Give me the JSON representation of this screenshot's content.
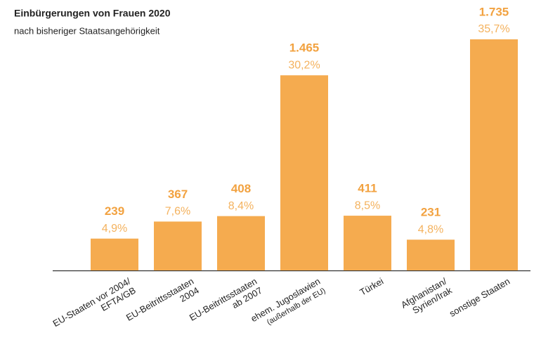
{
  "chart_data": {
    "type": "bar",
    "title": "Einbürgerungen von Frauen 2020",
    "subtitle": "nach bisheriger Staatsangehörigkeit",
    "categories": [
      [
        "EU-Staaten vor 2004/",
        "EFTA/GB"
      ],
      [
        "EU-Beitrittsstaaten",
        "2004"
      ],
      [
        "EU-Beitrittsstaaten",
        "ab 2007"
      ],
      [
        "ehem. Jugoslawien",
        "(außerhalb der EU)"
      ],
      [
        "Türkei"
      ],
      [
        "Afghanistan/",
        "Syrien/Irak"
      ],
      [
        "sonstige Staaten"
      ]
    ],
    "values": [
      239,
      367,
      408,
      1465,
      411,
      231,
      1735
    ],
    "value_labels": [
      "239",
      "367",
      "408",
      "1.465",
      "411",
      "231",
      "1.735"
    ],
    "shares": [
      4.9,
      7.6,
      8.4,
      30.2,
      8.5,
      4.8,
      35.7
    ],
    "share_labels": [
      "4,9%",
      "7,6%",
      "8,4%",
      "30,2%",
      "8,5%",
      "4,8%",
      "35,7%"
    ],
    "color": "#f5ab4f"
  }
}
